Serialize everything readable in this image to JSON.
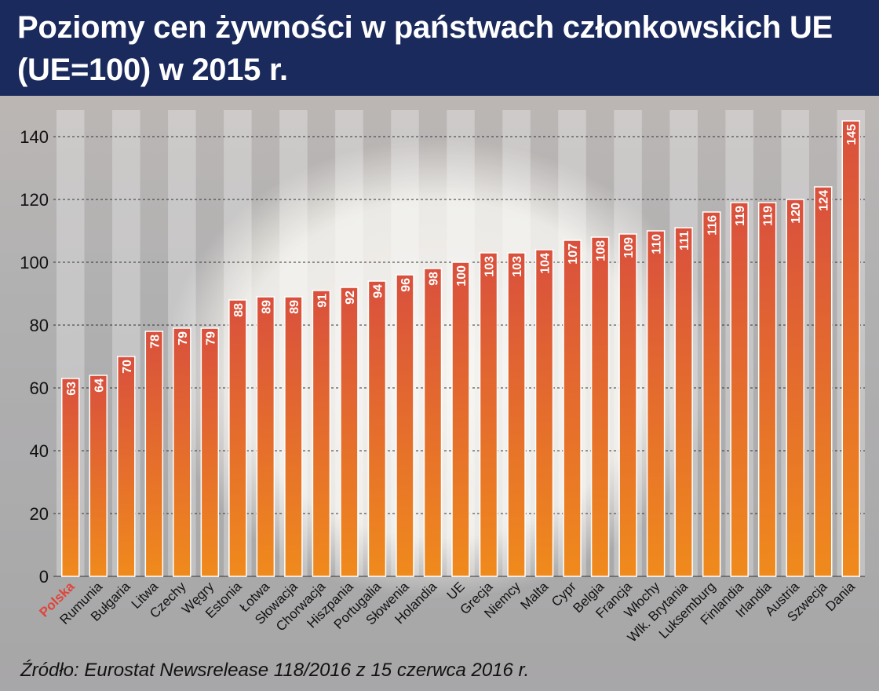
{
  "title": "Poziomy cen żywności w państwach członkowskich UE (UE=100) w 2015 r.",
  "source": "Źródło: Eurostat Newsrelease 118/2016 z 15 czerwca 2016 r.",
  "colors": {
    "header": "#1b2a5c",
    "bar_top": "#d9503d",
    "bar_bottom": "#f08a1c",
    "highlight_label": "#e0443a"
  },
  "chart_data": {
    "type": "bar",
    "categories": [
      "Polska",
      "Rumunia",
      "Bułgaria",
      "Litwa",
      "Czechy",
      "Węgry",
      "Estonia",
      "Łotwa",
      "Słowacja",
      "Chorwacja",
      "Hiszpania",
      "Portugalia",
      "Słowenia",
      "Holandia",
      "UE",
      "Grecja",
      "Niemcy",
      "Malta",
      "Cypr",
      "Belgia",
      "Francja",
      "Włochy",
      "Wlk. Brytania",
      "Luksemburg",
      "Finlandia",
      "Irlandia",
      "Austria",
      "Szwecja",
      "Dania"
    ],
    "values": [
      63,
      64,
      70,
      78,
      79,
      79,
      88,
      89,
      89,
      91,
      92,
      94,
      96,
      98,
      100,
      103,
      103,
      104,
      107,
      108,
      109,
      110,
      111,
      116,
      119,
      119,
      120,
      124,
      145
    ],
    "highlight_category": "Polska",
    "yticks": [
      0,
      20,
      40,
      60,
      80,
      100,
      120,
      140
    ],
    "ylim": [
      0,
      150
    ],
    "grid": true,
    "value_labels": true,
    "xlabel": "",
    "ylabel": ""
  }
}
